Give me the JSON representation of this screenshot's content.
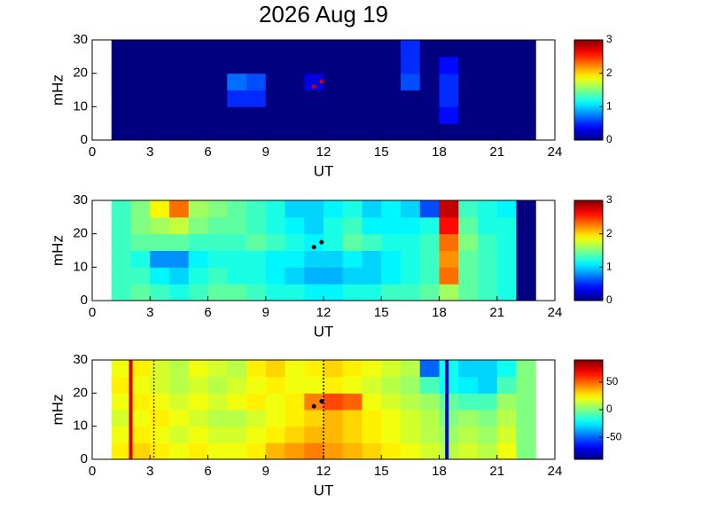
{
  "chart_data": [
    {
      "type": "heatmap",
      "title": "2026 Aug 19",
      "xlabel": "UT",
      "ylabel": "mHz",
      "colormap": "jet",
      "x": [
        1,
        2,
        3,
        4,
        5,
        6,
        7,
        8,
        9,
        10,
        11,
        12,
        13,
        14,
        15,
        16,
        17,
        18,
        19,
        20,
        21,
        22,
        23
      ],
      "y": [
        0,
        5,
        10,
        15,
        20,
        25,
        30
      ],
      "values": [
        [
          0,
          0,
          0,
          0,
          0,
          0,
          0,
          0,
          0,
          0,
          0,
          0,
          0,
          0,
          0,
          0,
          0,
          0,
          0,
          0,
          0,
          0
        ],
        [
          0,
          0,
          0,
          0,
          0,
          0,
          0,
          0,
          0,
          0,
          0,
          0,
          0,
          0,
          0,
          0,
          0,
          0.4,
          0,
          0,
          0,
          0
        ],
        [
          0,
          0,
          0,
          0,
          0,
          0,
          0.5,
          0.5,
          0,
          0,
          0,
          0,
          0,
          0,
          0,
          0,
          0,
          0.5,
          0,
          0,
          0,
          0
        ],
        [
          0,
          0,
          0,
          0,
          0,
          0,
          0.7,
          0.6,
          0,
          0,
          0.3,
          0,
          0,
          0,
          0,
          0.6,
          0,
          0.5,
          0,
          0,
          0,
          0
        ],
        [
          0,
          0,
          0,
          0,
          0,
          0,
          0,
          0,
          0,
          0,
          0,
          0,
          0,
          0,
          0,
          0.5,
          0,
          0.4,
          0,
          0,
          0,
          0
        ],
        [
          0,
          0,
          0,
          0,
          0,
          0,
          0,
          0,
          0,
          0,
          0,
          0,
          0,
          0,
          0,
          0.5,
          0,
          0,
          0,
          0,
          0,
          0
        ]
      ],
      "markers": {
        "x": [
          11.5,
          11.9
        ],
        "y": [
          16,
          17.5
        ],
        "color": "#d00000"
      },
      "xlim": [
        0,
        24
      ],
      "xticks": [
        0,
        3,
        6,
        9,
        12,
        15,
        18,
        21,
        24
      ],
      "ylim": [
        0,
        30
      ],
      "yticks": [
        0,
        10,
        20,
        30
      ],
      "clim": [
        0,
        3
      ],
      "cticks": [
        0,
        1,
        2,
        3
      ]
    },
    {
      "type": "heatmap",
      "xlabel": "UT",
      "ylabel": "mHz",
      "colormap": "jet",
      "x": [
        1,
        2,
        3,
        4,
        5,
        6,
        7,
        8,
        9,
        10,
        11,
        12,
        13,
        14,
        15,
        16,
        17,
        18,
        19,
        20,
        21,
        22,
        23
      ],
      "y": [
        0,
        5,
        10,
        15,
        20,
        25,
        30
      ],
      "values": [
        [
          1.3,
          1.4,
          1.3,
          1.2,
          1.3,
          1.4,
          1.4,
          1.3,
          1.2,
          1.2,
          1.1,
          1.1,
          1.2,
          1.2,
          1.3,
          1.3,
          1.4,
          1.6,
          1.4,
          1.3,
          1.2,
          0
        ],
        [
          1.3,
          1.3,
          1.1,
          1.0,
          1.2,
          1.3,
          1.2,
          1.2,
          1.1,
          1.0,
          0.9,
          0.9,
          1.0,
          1.0,
          1.1,
          1.2,
          1.3,
          2.3,
          1.4,
          1.3,
          1.2,
          0
        ],
        [
          1.3,
          1.2,
          0.8,
          0.8,
          1.1,
          1.2,
          1.2,
          1.2,
          1.1,
          1.1,
          1.0,
          1.0,
          1.1,
          1.0,
          1.1,
          1.2,
          1.3,
          2.2,
          1.4,
          1.3,
          1.2,
          0
        ],
        [
          1.3,
          1.4,
          1.4,
          1.4,
          1.3,
          1.3,
          1.3,
          1.4,
          1.3,
          1.2,
          1.1,
          1.2,
          1.4,
          1.3,
          1.2,
          1.2,
          1.3,
          2.3,
          1.5,
          1.3,
          1.2,
          0
        ],
        [
          1.3,
          1.5,
          1.6,
          1.7,
          1.5,
          1.4,
          1.4,
          1.3,
          1.2,
          1.1,
          1.0,
          1.2,
          1.3,
          1.1,
          1.1,
          1.1,
          1.2,
          2.6,
          1.4,
          1.2,
          1.2,
          0
        ],
        [
          1.3,
          1.5,
          1.9,
          2.3,
          1.6,
          1.5,
          1.4,
          1.3,
          1.2,
          1.0,
          1.0,
          1.1,
          1.2,
          1.0,
          1.1,
          1.0,
          0.6,
          2.8,
          1.3,
          1.2,
          1.1,
          0
        ]
      ],
      "markers": {
        "x": [
          11.5,
          11.9
        ],
        "y": [
          16,
          17.5
        ],
        "color": "#000000"
      },
      "xlim": [
        0,
        24
      ],
      "xticks": [
        0,
        3,
        6,
        9,
        12,
        15,
        18,
        21,
        24
      ],
      "ylim": [
        0,
        30
      ],
      "yticks": [
        0,
        10,
        20,
        30
      ],
      "clim": [
        0,
        3
      ],
      "cticks": [
        0,
        1,
        2,
        3
      ]
    },
    {
      "type": "heatmap",
      "xlabel": "UT",
      "ylabel": "mHz",
      "colormap": "jet",
      "x": [
        1,
        2,
        3,
        4,
        5,
        6,
        7,
        8,
        9,
        10,
        11,
        12,
        13,
        14,
        15,
        16,
        17,
        18,
        19,
        20,
        21,
        22,
        23
      ],
      "y": [
        0,
        5,
        10,
        15,
        20,
        25,
        30
      ],
      "values": [
        [
          25,
          30,
          25,
          20,
          25,
          20,
          20,
          25,
          35,
          40,
          45,
          40,
          35,
          30,
          25,
          20,
          15,
          10,
          15,
          10,
          20,
          0
        ],
        [
          20,
          25,
          20,
          15,
          20,
          15,
          15,
          20,
          25,
          30,
          35,
          35,
          30,
          25,
          20,
          15,
          10,
          5,
          10,
          5,
          15,
          0
        ],
        [
          15,
          20,
          25,
          20,
          15,
          10,
          10,
          15,
          20,
          25,
          30,
          35,
          30,
          25,
          20,
          15,
          10,
          0,
          5,
          0,
          10,
          0
        ],
        [
          20,
          25,
          20,
          15,
          20,
          15,
          20,
          25,
          20,
          25,
          45,
          55,
          50,
          20,
          15,
          10,
          5,
          -5,
          -10,
          -10,
          5,
          0
        ],
        [
          25,
          20,
          15,
          10,
          15,
          10,
          15,
          20,
          25,
          20,
          20,
          25,
          20,
          15,
          10,
          5,
          -10,
          -20,
          -25,
          -30,
          -10,
          0
        ],
        [
          20,
          25,
          15,
          10,
          20,
          15,
          10,
          25,
          30,
          20,
          25,
          30,
          25,
          20,
          15,
          10,
          -50,
          -20,
          -30,
          -30,
          -20,
          0
        ]
      ],
      "vlines": [
        {
          "x": 2,
          "color": "#d00000",
          "style": "solid"
        },
        {
          "x": 3.2,
          "color": "#a00000",
          "style": "dotted"
        },
        {
          "x": 12,
          "color": "#0000a0",
          "style": "dotted"
        },
        {
          "x": 18.4,
          "color": "#0000c0",
          "style": "solid"
        }
      ],
      "markers": {
        "x": [
          11.5,
          11.9
        ],
        "y": [
          16,
          17.5
        ],
        "color": "#000000"
      },
      "xlim": [
        0,
        24
      ],
      "xticks": [
        0,
        3,
        6,
        9,
        12,
        15,
        18,
        21,
        24
      ],
      "ylim": [
        0,
        30
      ],
      "yticks": [
        0,
        10,
        20,
        30
      ],
      "clim": [
        -90,
        90
      ],
      "cticks": [
        -50,
        0,
        50
      ]
    }
  ]
}
